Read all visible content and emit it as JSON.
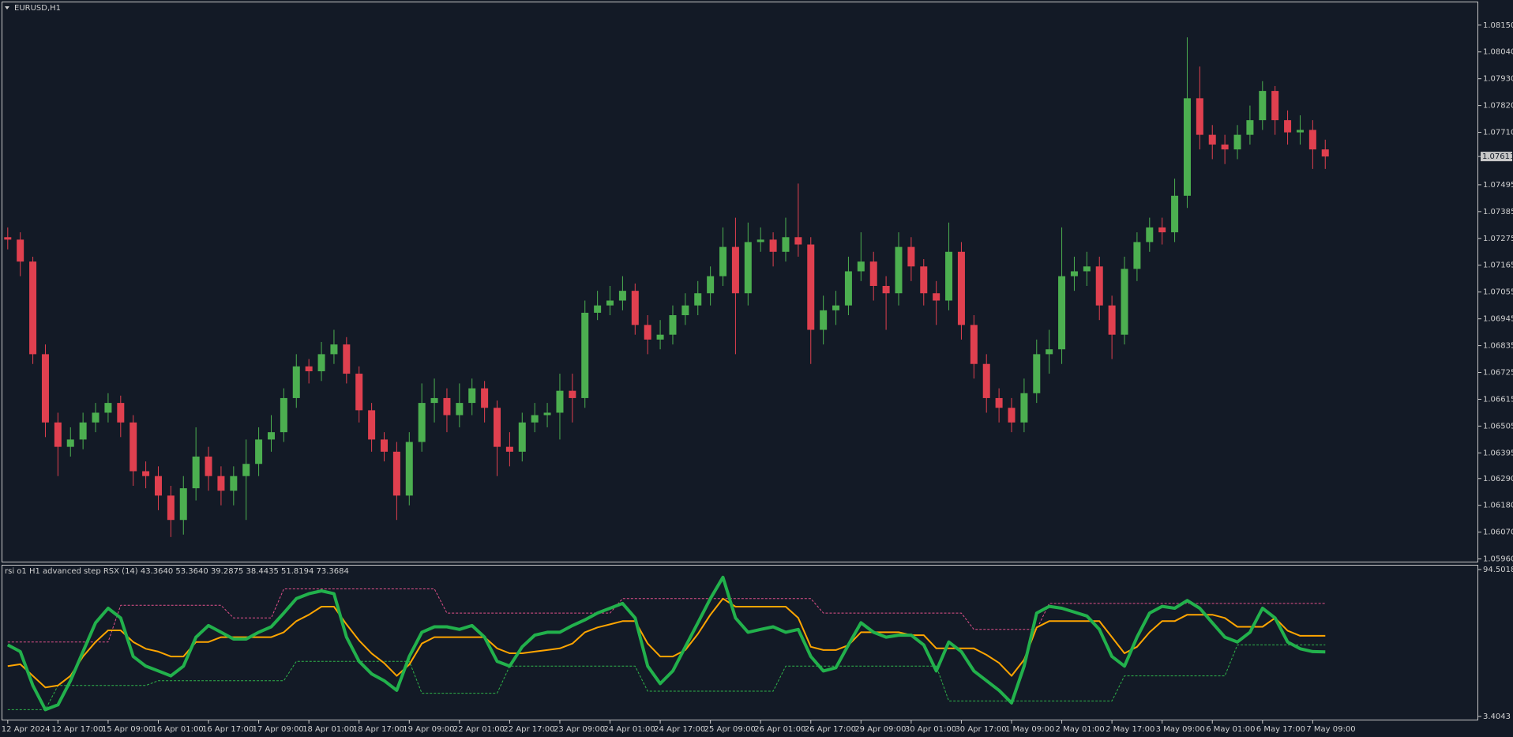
{
  "chart_data": [
    {
      "type": "candlestick",
      "title": "EURUSD,H1",
      "up_color": "#4caf50",
      "down_color": "#e0404f",
      "categories": [
        "12 Apr 2024",
        null,
        null,
        null,
        "12 Apr 17:00",
        null,
        null,
        null,
        "15 Apr 09:00",
        null,
        null,
        null,
        "16 Apr 01:00",
        null,
        null,
        null,
        "16 Apr 17:00",
        null,
        null,
        null,
        "17 Apr 09:00",
        null,
        null,
        null,
        "18 Apr 01:00",
        null,
        null,
        null,
        "18 Apr 17:00",
        null,
        null,
        null,
        "19 Apr 09:00",
        null,
        null,
        null,
        "22 Apr 01:00",
        null,
        null,
        null,
        "22 Apr 17:00",
        null,
        null,
        null,
        "23 Apr 09:00",
        null,
        null,
        null,
        "24 Apr 01:00",
        null,
        null,
        null,
        "24 Apr 17:00",
        null,
        null,
        null,
        "25 Apr 09:00",
        null,
        null,
        null,
        "26 Apr 01:00",
        null,
        null,
        null,
        "26 Apr 17:00",
        null,
        null,
        null,
        "29 Apr 09:00",
        null,
        null,
        null,
        "30 Apr 01:00",
        null,
        null,
        null,
        "30 Apr 17:00",
        null,
        null,
        null,
        "1 May 09:00",
        null,
        null,
        null,
        "2 May 01:00",
        null,
        null,
        null,
        "2 May 17:00",
        null,
        null,
        null,
        "3 May 09:00",
        null,
        null,
        null,
        "6 May 01:00",
        null,
        null,
        null,
        "6 May 17:00",
        null,
        null,
        null,
        "7 May 09:00",
        null
      ],
      "open": [
        1.0728,
        1.0727,
        1.0718,
        1.068,
        1.0652,
        1.0642,
        1.0645,
        1.0652,
        1.0656,
        1.066,
        1.0652,
        1.0632,
        1.063,
        1.0622,
        1.0612,
        1.0625,
        1.0638,
        1.063,
        1.0624,
        1.063,
        1.0635,
        1.0645,
        1.0648,
        1.0662,
        1.0675,
        1.0673,
        1.068,
        1.0684,
        1.0672,
        1.0657,
        1.0645,
        1.064,
        1.0622,
        1.0644,
        1.066,
        1.0662,
        1.0655,
        1.066,
        1.0666,
        1.0658,
        1.0642,
        1.064,
        1.0652,
        1.0655,
        1.0656,
        1.0665,
        1.0662,
        1.0697,
        1.07,
        1.0702,
        1.0706,
        1.0692,
        1.0686,
        1.0688,
        1.0696,
        1.07,
        1.0705,
        1.0712,
        1.0724,
        1.0705,
        1.0726,
        1.0727,
        1.0722,
        1.0728,
        1.0725,
        1.069,
        1.0698,
        1.07,
        1.0714,
        1.0718,
        1.0708,
        1.0705,
        1.0724,
        1.0716,
        1.0705,
        1.0702,
        1.0722,
        1.0692,
        1.0676,
        1.0662,
        1.0658,
        1.0652,
        1.0664,
        1.068,
        1.0682,
        1.0712,
        1.0714,
        1.0716,
        1.07,
        1.0688,
        1.0715,
        1.0726,
        1.0732,
        1.073,
        1.0745,
        1.0785,
        1.077,
        1.0766,
        1.0764,
        1.077,
        1.0776,
        1.0788,
        1.0776,
        1.0771,
        1.0772,
        1.0764
      ],
      "high": [
        1.0732,
        1.073,
        1.072,
        1.0684,
        1.0656,
        1.065,
        1.0656,
        1.066,
        1.0664,
        1.0663,
        1.0655,
        1.0636,
        1.0634,
        1.0626,
        1.063,
        1.065,
        1.0642,
        1.0634,
        1.0634,
        1.0645,
        1.065,
        1.0655,
        1.0666,
        1.068,
        1.0678,
        1.0685,
        1.069,
        1.0687,
        1.0675,
        1.066,
        1.0648,
        1.0644,
        1.0648,
        1.0668,
        1.067,
        1.0666,
        1.0668,
        1.067,
        1.0669,
        1.0661,
        1.0648,
        1.0656,
        1.066,
        1.066,
        1.0672,
        1.0672,
        1.0702,
        1.0706,
        1.0708,
        1.0712,
        1.0709,
        1.0696,
        1.0694,
        1.07,
        1.0705,
        1.071,
        1.0716,
        1.0732,
        1.0736,
        1.0734,
        1.0732,
        1.073,
        1.0736,
        1.075,
        1.0728,
        1.0704,
        1.0706,
        1.072,
        1.073,
        1.0722,
        1.0712,
        1.073,
        1.0728,
        1.0719,
        1.071,
        1.0734,
        1.0726,
        1.0696,
        1.068,
        1.0666,
        1.0662,
        1.067,
        1.0686,
        1.069,
        1.0732,
        1.072,
        1.0722,
        1.072,
        1.0704,
        1.072,
        1.073,
        1.0736,
        1.0736,
        1.0752,
        1.081,
        1.0798,
        1.0774,
        1.077,
        1.0774,
        1.0782,
        1.0792,
        1.079,
        1.078,
        1.0778,
        1.0776,
        1.0768
      ],
      "low": [
        1.0723,
        1.0712,
        1.0676,
        1.0646,
        1.063,
        1.0638,
        1.0641,
        1.0648,
        1.0652,
        1.0646,
        1.0626,
        1.0625,
        1.0616,
        1.0605,
        1.0606,
        1.062,
        1.0624,
        1.0618,
        1.0618,
        1.0612,
        1.063,
        1.064,
        1.0644,
        1.0658,
        1.0668,
        1.0669,
        1.0676,
        1.0668,
        1.0652,
        1.064,
        1.0636,
        1.0612,
        1.0618,
        1.064,
        1.0652,
        1.0648,
        1.065,
        1.0655,
        1.0652,
        1.063,
        1.0634,
        1.0636,
        1.0648,
        1.065,
        1.0645,
        1.0652,
        1.0658,
        1.0694,
        1.0696,
        1.0698,
        1.0688,
        1.068,
        1.0682,
        1.0684,
        1.0692,
        1.0696,
        1.07,
        1.0708,
        1.068,
        1.07,
        1.0722,
        1.0716,
        1.0718,
        1.072,
        1.0676,
        1.0684,
        1.0692,
        1.0696,
        1.071,
        1.0702,
        1.069,
        1.07,
        1.071,
        1.07,
        1.0692,
        1.0698,
        1.0686,
        1.067,
        1.0656,
        1.0652,
        1.0648,
        1.0648,
        1.066,
        1.0672,
        1.0676,
        1.0706,
        1.0708,
        1.0694,
        1.0678,
        1.0684,
        1.071,
        1.0722,
        1.0725,
        1.0726,
        1.074,
        1.0764,
        1.076,
        1.0758,
        1.076,
        1.0766,
        1.0772,
        1.077,
        1.0766,
        1.0766,
        1.0756,
        1.0756
      ],
      "close": [
        1.0727,
        1.0718,
        1.068,
        1.0652,
        1.0642,
        1.0645,
        1.0652,
        1.0656,
        1.066,
        1.0652,
        1.0632,
        1.063,
        1.0622,
        1.0612,
        1.0625,
        1.0638,
        1.063,
        1.0624,
        1.063,
        1.0635,
        1.0645,
        1.0648,
        1.0662,
        1.0675,
        1.0673,
        1.068,
        1.0684,
        1.0672,
        1.0657,
        1.0645,
        1.064,
        1.0622,
        1.0644,
        1.066,
        1.0662,
        1.0655,
        1.066,
        1.0666,
        1.0658,
        1.0642,
        1.064,
        1.0652,
        1.0655,
        1.0656,
        1.0665,
        1.0662,
        1.0697,
        1.07,
        1.0702,
        1.0706,
        1.0692,
        1.0686,
        1.0688,
        1.0696,
        1.07,
        1.0705,
        1.0712,
        1.0724,
        1.0705,
        1.0726,
        1.0727,
        1.0722,
        1.0728,
        1.0725,
        1.069,
        1.0698,
        1.07,
        1.0714,
        1.0718,
        1.0708,
        1.0705,
        1.0724,
        1.0716,
        1.0705,
        1.0702,
        1.0722,
        1.0692,
        1.0676,
        1.0662,
        1.0658,
        1.0652,
        1.0664,
        1.068,
        1.0682,
        1.0712,
        1.0714,
        1.0716,
        1.07,
        1.0688,
        1.0715,
        1.0726,
        1.0732,
        1.073,
        1.0745,
        1.0785,
        1.077,
        1.0766,
        1.0764,
        1.077,
        1.0776,
        1.0788,
        1.0776,
        1.0771,
        1.0772,
        1.0764,
        1.07611
      ],
      "ylim": [
        1.05949,
        1.08241
      ],
      "yticks": [
        {
          "value": 1.0815,
          "label": "1.08150"
        },
        {
          "value": 1.0804,
          "label": "1.08040"
        },
        {
          "value": 1.0793,
          "label": "1.07930"
        },
        {
          "value": 1.0782,
          "label": "1.07820"
        },
        {
          "value": 1.0771,
          "label": "1.07710"
        },
        {
          "value": 1.07495,
          "label": "1.07495"
        },
        {
          "value": 1.07385,
          "label": "1.07385"
        },
        {
          "value": 1.07275,
          "label": "1.07275"
        },
        {
          "value": 1.07165,
          "label": "1.07165"
        },
        {
          "value": 1.07055,
          "label": "1.07055"
        },
        {
          "value": 1.06945,
          "label": "1.06945"
        },
        {
          "value": 1.06835,
          "label": "1.06835"
        },
        {
          "value": 1.06725,
          "label": "1.06725"
        },
        {
          "value": 1.06615,
          "label": "1.06615"
        },
        {
          "value": 1.06505,
          "label": "1.06505"
        },
        {
          "value": 1.06395,
          "label": "1.06395"
        },
        {
          "value": 1.0629,
          "label": "1.06290"
        },
        {
          "value": 1.0618,
          "label": "1.06180"
        },
        {
          "value": 1.0607,
          "label": "1.06070"
        },
        {
          "value": 1.0596,
          "label": "1.05960"
        }
      ],
      "current_price": {
        "value": 1.07611,
        "label": "1.07611"
      }
    },
    {
      "type": "line",
      "title": "rsi o1 H1 advanced step RSX (14) 43.3640 53.3640 39.2875 38.4435 51.8194 73.3684",
      "ylim": [
        3.4043,
        94.5018
      ],
      "yticks": [
        94.5018,
        3.4043
      ],
      "series": [
        {
          "color": "#e0508a",
          "dash": true,
          "width": 1,
          "values": [
            49.6,
            49.6,
            49.6,
            49.6,
            49.6,
            49.6,
            49.6,
            49.6,
            49.6,
            72.3,
            72.3,
            72.3,
            72.3,
            72.3,
            72.3,
            72.3,
            72.3,
            72.3,
            64.5,
            64.5,
            64.5,
            64.5,
            82.5,
            82.5,
            82.5,
            82.5,
            82.5,
            82.5,
            82.5,
            82.5,
            82.5,
            82.5,
            82.5,
            82.5,
            82.5,
            67.5,
            67.5,
            67.5,
            67.5,
            67.5,
            67.5,
            67.5,
            67.5,
            67.5,
            67.5,
            67.5,
            67.5,
            67.5,
            67.5,
            76.5,
            76.5,
            76.5,
            76.5,
            76.5,
            76.5,
            76.5,
            76.5,
            76.5,
            76.5,
            76.5,
            76.5,
            76.5,
            76.5,
            76.5,
            76.5,
            67.5,
            67.5,
            67.5,
            67.5,
            67.5,
            67.5,
            67.5,
            67.5,
            67.5,
            67.5,
            67.5,
            67.5,
            57.4,
            57.4,
            57.4,
            57.4,
            57.4,
            57.4,
            73.5,
            73.5,
            73.5,
            73.5,
            73.5,
            73.5,
            73.5,
            73.5,
            73.5,
            73.5,
            73.5,
            73.5,
            73.5,
            73.5,
            73.5,
            73.5,
            73.5,
            73.5,
            73.5,
            73.5,
            73.5,
            73.5,
            73.5
          ]
        },
        {
          "color": "#2fb34a",
          "dash": true,
          "width": 1,
          "values": [
            7.6,
            7.6,
            7.6,
            7.6,
            22.6,
            22.6,
            22.6,
            22.6,
            22.6,
            22.6,
            22.6,
            22.6,
            25.6,
            25.6,
            25.6,
            25.6,
            25.6,
            25.6,
            25.6,
            25.6,
            25.6,
            25.6,
            25.6,
            37.6,
            37.6,
            37.6,
            37.6,
            37.6,
            37.6,
            37.6,
            37.6,
            37.6,
            37.6,
            17.8,
            17.8,
            17.8,
            17.8,
            17.8,
            17.8,
            17.8,
            34.6,
            34.6,
            34.6,
            34.6,
            34.6,
            34.6,
            34.6,
            34.6,
            34.6,
            34.6,
            34.6,
            19.1,
            19.1,
            19.1,
            19.1,
            19.1,
            19.1,
            19.1,
            19.1,
            19.1,
            19.1,
            19.1,
            34.6,
            34.6,
            34.6,
            34.6,
            34.6,
            34.6,
            34.6,
            34.6,
            34.6,
            34.6,
            34.6,
            34.6,
            34.6,
            13.0,
            13.0,
            13.0,
            13.0,
            13.0,
            13.0,
            13.0,
            13.0,
            13.0,
            13.0,
            13.0,
            13.0,
            13.0,
            13.0,
            28.6,
            28.6,
            28.6,
            28.6,
            28.6,
            28.6,
            28.6,
            28.6,
            28.6,
            47.8,
            47.8,
            47.8,
            47.8,
            47.8,
            47.8,
            47.8,
            47.8
          ]
        },
        {
          "color": "#ffa500",
          "dash": false,
          "width": 2,
          "values": [
            34.6,
            35.8,
            28.6,
            21.4,
            22.6,
            28.6,
            40.6,
            49.6,
            56.8,
            56.8,
            49.6,
            45.4,
            43.6,
            40.6,
            40.6,
            49.6,
            49.6,
            52.6,
            52.6,
            52.6,
            52.6,
            52.6,
            55.6,
            62.5,
            66.5,
            71.5,
            71.5,
            60.5,
            50.5,
            42.5,
            36.5,
            28.6,
            35.6,
            48.6,
            52.6,
            52.6,
            52.6,
            52.6,
            52.6,
            45.6,
            42.6,
            42.6,
            43.6,
            44.6,
            45.6,
            48.6,
            55.6,
            58.6,
            60.5,
            62.5,
            62.5,
            48.6,
            40.6,
            40.6,
            44.6,
            54.6,
            66.5,
            76.5,
            71.5,
            71.5,
            71.5,
            71.5,
            71.5,
            64.5,
            46.6,
            44.6,
            44.6,
            47.6,
            55.6,
            55.6,
            55.6,
            55.6,
            53.8,
            53.8,
            45.6,
            45.6,
            45.6,
            45.6,
            41.6,
            36.6,
            28.6,
            38.6,
            58.6,
            62.5,
            62.5,
            62.5,
            62.5,
            62.5,
            52.6,
            42.6,
            46.6,
            55.6,
            62.5,
            62.5,
            66.5,
            66.5,
            66.5,
            64.5,
            59.0,
            59.0,
            59.0,
            64.5,
            56.6,
            53.4,
            53.4,
            53.4
          ]
        },
        {
          "color": "#22b14c",
          "dash": false,
          "width": 4,
          "values": [
            47.8,
            43.6,
            22.6,
            7.6,
            10.6,
            25.6,
            43.6,
            61.5,
            70.5,
            64.5,
            40.6,
            34.6,
            31.6,
            28.6,
            34.6,
            52.6,
            59.8,
            55.6,
            51.4,
            51.4,
            55.6,
            59.0,
            67.5,
            76.5,
            79.5,
            81.3,
            79.5,
            52.6,
            37.6,
            29.8,
            25.6,
            19.6,
            40.6,
            55.6,
            59.0,
            59.0,
            57.4,
            59.8,
            52.6,
            37.6,
            34.6,
            46.6,
            53.8,
            55.6,
            55.6,
            59.8,
            63.3,
            67.5,
            70.5,
            73.5,
            64.5,
            34.6,
            23.8,
            31.6,
            46.6,
            61.5,
            76.5,
            89.7,
            64.5,
            55.6,
            57.4,
            59.0,
            55.6,
            57.4,
            40.6,
            31.6,
            33.6,
            47.8,
            61.5,
            55.6,
            52.6,
            53.8,
            53.8,
            47.8,
            31.6,
            49.6,
            43.6,
            31.6,
            25.6,
            19.6,
            11.8,
            34.6,
            67.5,
            71.7,
            70.5,
            68.1,
            65.7,
            57.4,
            40.6,
            34.6,
            52.6,
            67.5,
            71.7,
            70.5,
            75.3,
            70.5,
            61.5,
            52.6,
            49.6,
            55.6,
            70.5,
            64.5,
            49.6,
            45.4,
            43.6,
            43.4
          ]
        }
      ]
    }
  ]
}
